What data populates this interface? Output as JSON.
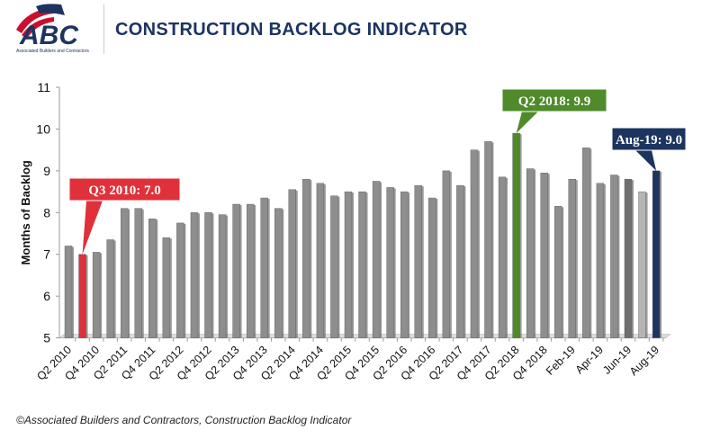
{
  "header": {
    "logo_text": "ABC",
    "logo_subtext": "Associated Builders and Contractors",
    "title": "CONSTRUCTION BACKLOG INDICATOR"
  },
  "footer": "©Associated Builders and Contractors, Construction Backlog Indicator",
  "chart_data": {
    "type": "bar",
    "title": "CONSTRUCTION BACKLOG INDICATOR",
    "ylabel": "Months of Backlog",
    "xlabel": "",
    "ylim": [
      5,
      11
    ],
    "yticks": [
      5,
      6,
      7,
      8,
      9,
      10,
      11
    ],
    "grid": false,
    "categories": [
      "Q2 2010",
      "Q3 2010",
      "Q4 2010",
      "Q1 2011",
      "Q2 2011",
      "Q3 2011",
      "Q4 2011",
      "Q1 2012",
      "Q2 2012",
      "Q3 2012",
      "Q4 2012",
      "Q1 2013",
      "Q2 2013",
      "Q3 2013",
      "Q4 2013",
      "Q1 2014",
      "Q2 2014",
      "Q3 2014",
      "Q4 2014",
      "Q1 2015",
      "Q2 2015",
      "Q3 2015",
      "Q4 2015",
      "Q1 2016",
      "Q2 2016",
      "Q3 2016",
      "Q4 2016",
      "Q1 2017",
      "Q2 2017",
      "Q3 2017",
      "Q4 2017",
      "Q1 2018",
      "Q2 2018",
      "Q3 2018",
      "Q4 2018",
      "Jan-19",
      "Feb-19",
      "Mar-19",
      "Apr-19",
      "May-19",
      "Jun-19",
      "Jul-19",
      "Aug-19"
    ],
    "shown_tick_labels": [
      "Q2 2010",
      "Q4 2010",
      "Q2 2011",
      "Q4 2011",
      "Q2 2012",
      "Q4 2012",
      "Q2 2013",
      "Q4 2013",
      "Q2 2014",
      "Q4 2014",
      "Q2 2015",
      "Q4 2015",
      "Q2 2016",
      "Q4 2016",
      "Q2 2017",
      "Q4 2017",
      "Q2 2018",
      "Q4 2018",
      "Feb-19",
      "Apr-19",
      "Jun-19",
      "Aug-19"
    ],
    "values": [
      7.2,
      7.0,
      7.05,
      7.35,
      8.1,
      8.1,
      7.85,
      7.4,
      7.75,
      8.0,
      8.0,
      7.95,
      8.2,
      8.2,
      8.35,
      8.1,
      8.55,
      8.8,
      8.7,
      8.4,
      8.5,
      8.5,
      8.75,
      8.6,
      8.5,
      8.65,
      8.35,
      9.0,
      8.65,
      9.5,
      9.7,
      8.85,
      9.9,
      9.05,
      8.95,
      8.15,
      8.8,
      9.55,
      8.7,
      8.9,
      8.8,
      8.5,
      9.0
    ],
    "colors": {
      "default": "#8e8e8e",
      "Jun-19": "#6f6f6f",
      "Jul-19": "#b4b4b4",
      "highlight_low": "#e0303a",
      "highlight_high": "#4f8a2b",
      "latest": "#1d3461"
    },
    "annotations": [
      {
        "category": "Q3 2010",
        "text": "Q3 2010: 7.0",
        "color": "#e0303a"
      },
      {
        "category": "Q2 2018",
        "text": "Q2 2018: 9.9",
        "color": "#4f8a2b"
      },
      {
        "category": "Aug-19",
        "text": "Aug-19: 9.0",
        "color": "#1d3461"
      }
    ]
  }
}
